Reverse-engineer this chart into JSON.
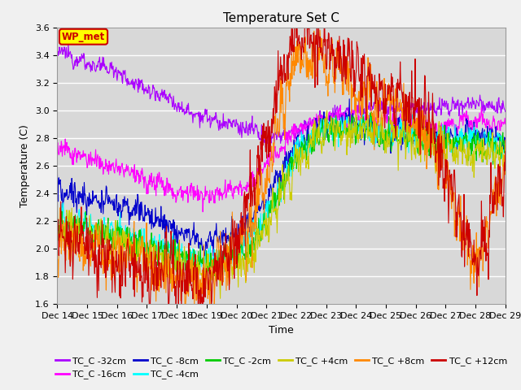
{
  "title": "Temperature Set C",
  "xlabel": "Time",
  "ylabel": "Temperature (C)",
  "ylim": [
    1.6,
    3.6
  ],
  "yticks": [
    1.6,
    1.8,
    2.0,
    2.2,
    2.4,
    2.6,
    2.8,
    3.0,
    3.2,
    3.4,
    3.6
  ],
  "x_tick_labels": [
    "Dec 14",
    "Dec 15",
    "Dec 16",
    "Dec 17",
    "Dec 18",
    "Dec 19",
    "Dec 20",
    "Dec 21",
    "Dec 22",
    "Dec 23",
    "Dec 24",
    "Dec 25",
    "Dec 26",
    "Dec 27",
    "Dec 28",
    "Dec 29"
  ],
  "series": [
    {
      "label": "TC_C -32cm",
      "color": "#aa00ff"
    },
    {
      "label": "TC_C -16cm",
      "color": "#ff00ff"
    },
    {
      "label": "TC_C -8cm",
      "color": "#0000cc"
    },
    {
      "label": "TC_C -4cm",
      "color": "#00ffff"
    },
    {
      "label": "TC_C -2cm",
      "color": "#00cc00"
    },
    {
      "label": "TC_C +4cm",
      "color": "#cccc00"
    },
    {
      "label": "TC_C +8cm",
      "color": "#ff8800"
    },
    {
      "label": "TC_C +12cm",
      "color": "#cc0000"
    }
  ],
  "annotation_text": "WP_met",
  "annotation_color": "#cc0000",
  "annotation_bg": "#ffff00",
  "plot_bg": "#d8d8d8",
  "fig_bg": "#f0f0f0",
  "grid_color": "#ffffff",
  "title_fontsize": 11,
  "tick_fontsize": 8,
  "legend_fontsize": 8
}
